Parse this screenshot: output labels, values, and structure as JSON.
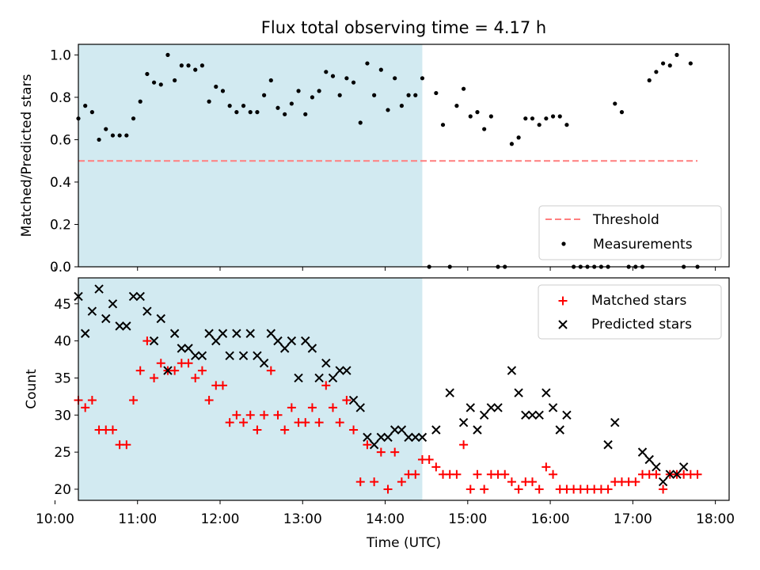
{
  "figure_title": "Flux total observing time = 4.17 h",
  "chart_data": [
    {
      "type": "scatter",
      "panel": "top",
      "ylabel": "Matched/Predicted stars",
      "xlabel": "",
      "xlim": [
        "10:17",
        "18:10"
      ],
      "ylim": [
        0,
        1.05
      ],
      "y_ticks": [
        0.0,
        0.2,
        0.4,
        0.6,
        0.8,
        1.0
      ],
      "y_tick_labels": [
        "0.0",
        "0.2",
        "0.4",
        "0.6",
        "0.8",
        "1.0"
      ],
      "x_tick_labels_shown": false,
      "shaded_interval": {
        "start": "10:17",
        "end": "14:27",
        "color": "#add8e6"
      },
      "legend": {
        "position": "lower right",
        "entries": [
          "Threshold",
          "Measurements"
        ]
      },
      "series": [
        {
          "name": "Threshold",
          "style": "dashed-line",
          "color": "#ff7f7f",
          "x": [
            "10:17",
            "17:47"
          ],
          "y": [
            0.5,
            0.5
          ]
        },
        {
          "name": "Measurements",
          "style": "dot",
          "color": "#000000",
          "x": [
            "10:17",
            "10:22",
            "10:27",
            "10:32",
            "10:37",
            "10:42",
            "10:47",
            "10:52",
            "10:57",
            "11:02",
            "11:07",
            "11:12",
            "11:17",
            "11:22",
            "11:27",
            "11:32",
            "11:37",
            "11:42",
            "11:47",
            "11:52",
            "11:57",
            "12:02",
            "12:07",
            "12:12",
            "12:17",
            "12:22",
            "12:27",
            "12:32",
            "12:37",
            "12:42",
            "12:47",
            "12:52",
            "12:57",
            "13:02",
            "13:07",
            "13:12",
            "13:17",
            "13:22",
            "13:27",
            "13:32",
            "13:37",
            "13:42",
            "13:47",
            "13:52",
            "13:57",
            "14:02",
            "14:07",
            "14:12",
            "14:17",
            "14:22",
            "14:27",
            "14:32",
            "14:37",
            "14:42",
            "14:47",
            "14:52",
            "14:57",
            "15:02",
            "15:07",
            "15:12",
            "15:17",
            "15:22",
            "15:27",
            "15:32",
            "15:37",
            "15:42",
            "15:47",
            "15:52",
            "15:57",
            "16:02",
            "16:07",
            "16:12",
            "16:17",
            "16:22",
            "16:27",
            "16:32",
            "16:37",
            "16:42",
            "16:47",
            "16:52",
            "16:57",
            "17:02",
            "17:07",
            "17:12",
            "17:17",
            "17:22",
            "17:27",
            "17:32",
            "17:37",
            "17:42",
            "17:47"
          ],
          "y": [
            0.7,
            0.76,
            0.73,
            0.6,
            0.65,
            0.62,
            0.62,
            0.62,
            0.7,
            0.78,
            0.91,
            0.87,
            0.86,
            1.0,
            0.88,
            0.95,
            0.95,
            0.93,
            0.95,
            0.78,
            0.85,
            0.83,
            0.76,
            0.73,
            0.76,
            0.73,
            0.73,
            0.81,
            0.88,
            0.75,
            0.72,
            0.77,
            0.83,
            0.72,
            0.8,
            0.83,
            0.92,
            0.9,
            0.81,
            0.89,
            0.87,
            0.68,
            0.96,
            0.81,
            0.93,
            0.74,
            0.89,
            0.76,
            0.81,
            0.81,
            0.89,
            0.0,
            0.82,
            0.67,
            0.0,
            0.76,
            0.84,
            0.71,
            0.73,
            0.65,
            0.71,
            0.0,
            0.0,
            0.58,
            0.61,
            0.7,
            0.7,
            0.67,
            0.7,
            0.71,
            0.71,
            0.67,
            0.0,
            0.0,
            0.0,
            0.0,
            0.0,
            0.0,
            0.77,
            0.73,
            0.0,
            0.0,
            0.0,
            0.88,
            0.92,
            0.96,
            0.95,
            1.0,
            0.0,
            0.96,
            0.0
          ]
        }
      ]
    },
    {
      "type": "scatter",
      "panel": "bottom",
      "xlabel": "Time (UTC)",
      "ylabel": "Count",
      "xlim": [
        "10:17",
        "18:10"
      ],
      "ylim": [
        18.5,
        48.5
      ],
      "y_ticks": [
        20,
        25,
        30,
        35,
        40,
        45
      ],
      "y_tick_labels": [
        "20",
        "25",
        "30",
        "35",
        "40",
        "45"
      ],
      "x_ticks": [
        "10:00",
        "11:00",
        "12:00",
        "13:00",
        "14:00",
        "15:00",
        "16:00",
        "17:00",
        "18:00"
      ],
      "x_tick_labels": [
        "10:00",
        "11:00",
        "12:00",
        "13:00",
        "14:00",
        "15:00",
        "16:00",
        "17:00",
        "18:00"
      ],
      "shaded_interval": {
        "start": "10:17",
        "end": "14:27",
        "color": "#add8e6"
      },
      "legend": {
        "position": "upper right",
        "entries": [
          "Matched stars",
          "Predicted stars"
        ]
      },
      "series": [
        {
          "name": "Matched stars",
          "marker": "+",
          "color": "#ff0000",
          "x": [
            "10:17",
            "10:22",
            "10:27",
            "10:32",
            "10:37",
            "10:42",
            "10:47",
            "10:52",
            "10:57",
            "11:02",
            "11:07",
            "11:12",
            "11:17",
            "11:22",
            "11:27",
            "11:32",
            "11:37",
            "11:42",
            "11:47",
            "11:52",
            "11:57",
            "12:02",
            "12:07",
            "12:12",
            "12:17",
            "12:22",
            "12:27",
            "12:32",
            "12:37",
            "12:42",
            "12:47",
            "12:52",
            "12:57",
            "13:02",
            "13:07",
            "13:12",
            "13:17",
            "13:22",
            "13:27",
            "13:32",
            "13:37",
            "13:42",
            "13:47",
            "13:52",
            "13:57",
            "14:02",
            "14:07",
            "14:12",
            "14:17",
            "14:22",
            "14:27",
            "14:32",
            "14:37",
            "14:42",
            "14:47",
            "14:52",
            "14:57",
            "15:02",
            "15:07",
            "15:12",
            "15:17",
            "15:22",
            "15:27",
            "15:32",
            "15:37",
            "15:42",
            "15:47",
            "15:52",
            "15:57",
            "16:02",
            "16:07",
            "16:12",
            "16:17",
            "16:22",
            "16:27",
            "16:32",
            "16:37",
            "16:42",
            "16:47",
            "16:52",
            "16:57",
            "17:02",
            "17:07",
            "17:12",
            "17:17",
            "17:22",
            "17:27",
            "17:32",
            "17:37",
            "17:42",
            "17:47"
          ],
          "y": [
            32,
            31,
            32,
            28,
            28,
            28,
            26,
            26,
            32,
            36,
            40,
            35,
            37,
            36,
            36,
            37,
            37,
            35,
            36,
            32,
            34,
            34,
            29,
            30,
            29,
            30,
            28,
            30,
            36,
            30,
            28,
            31,
            29,
            29,
            31,
            29,
            34,
            31,
            29,
            32,
            28,
            21,
            26,
            21,
            25,
            20,
            25,
            21,
            22,
            22,
            24,
            24,
            23,
            22,
            22,
            22,
            26,
            20,
            22,
            20,
            22,
            22,
            22,
            21,
            20,
            21,
            21,
            20,
            23,
            22,
            20,
            20,
            20,
            20,
            20,
            20,
            20,
            20,
            21,
            21,
            21,
            21,
            22,
            22,
            22,
            20,
            22,
            22,
            22,
            22,
            22
          ]
        },
        {
          "name": "Predicted stars",
          "marker": "x",
          "color": "#000000",
          "x": [
            "10:17",
            "10:22",
            "10:27",
            "10:32",
            "10:37",
            "10:42",
            "10:47",
            "10:52",
            "10:57",
            "11:02",
            "11:07",
            "11:12",
            "11:17",
            "11:22",
            "11:27",
            "11:32",
            "11:37",
            "11:42",
            "11:47",
            "11:52",
            "11:57",
            "12:02",
            "12:07",
            "12:12",
            "12:17",
            "12:22",
            "12:27",
            "12:32",
            "12:37",
            "12:42",
            "12:47",
            "12:52",
            "12:57",
            "13:02",
            "13:07",
            "13:12",
            "13:17",
            "13:22",
            "13:27",
            "13:32",
            "13:37",
            "13:42",
            "13:47",
            "13:52",
            "13:57",
            "14:02",
            "14:07",
            "14:12",
            "14:17",
            "14:22",
            "14:27",
            "14:37",
            "14:47",
            "14:57",
            "15:02",
            "15:07",
            "15:12",
            "15:17",
            "15:22",
            "15:32",
            "15:37",
            "15:42",
            "15:47",
            "15:52",
            "15:57",
            "16:02",
            "16:07",
            "16:12",
            "16:42",
            "16:47",
            "17:07",
            "17:12",
            "17:17",
            "17:22",
            "17:27",
            "17:32",
            "17:37"
          ],
          "y": [
            46,
            41,
            44,
            47,
            43,
            45,
            42,
            42,
            46,
            46,
            44,
            40,
            43,
            36,
            41,
            39,
            39,
            38,
            38,
            41,
            40,
            41,
            38,
            41,
            38,
            41,
            38,
            37,
            41,
            40,
            39,
            40,
            35,
            40,
            39,
            35,
            37,
            35,
            36,
            36,
            32,
            31,
            27,
            26,
            27,
            27,
            28,
            28,
            27,
            27,
            27,
            28,
            33,
            29,
            31,
            28,
            30,
            31,
            31,
            36,
            33,
            30,
            30,
            30,
            33,
            31,
            28,
            30,
            26,
            29,
            25,
            24,
            23,
            21,
            22,
            22,
            23
          ]
        }
      ]
    }
  ]
}
